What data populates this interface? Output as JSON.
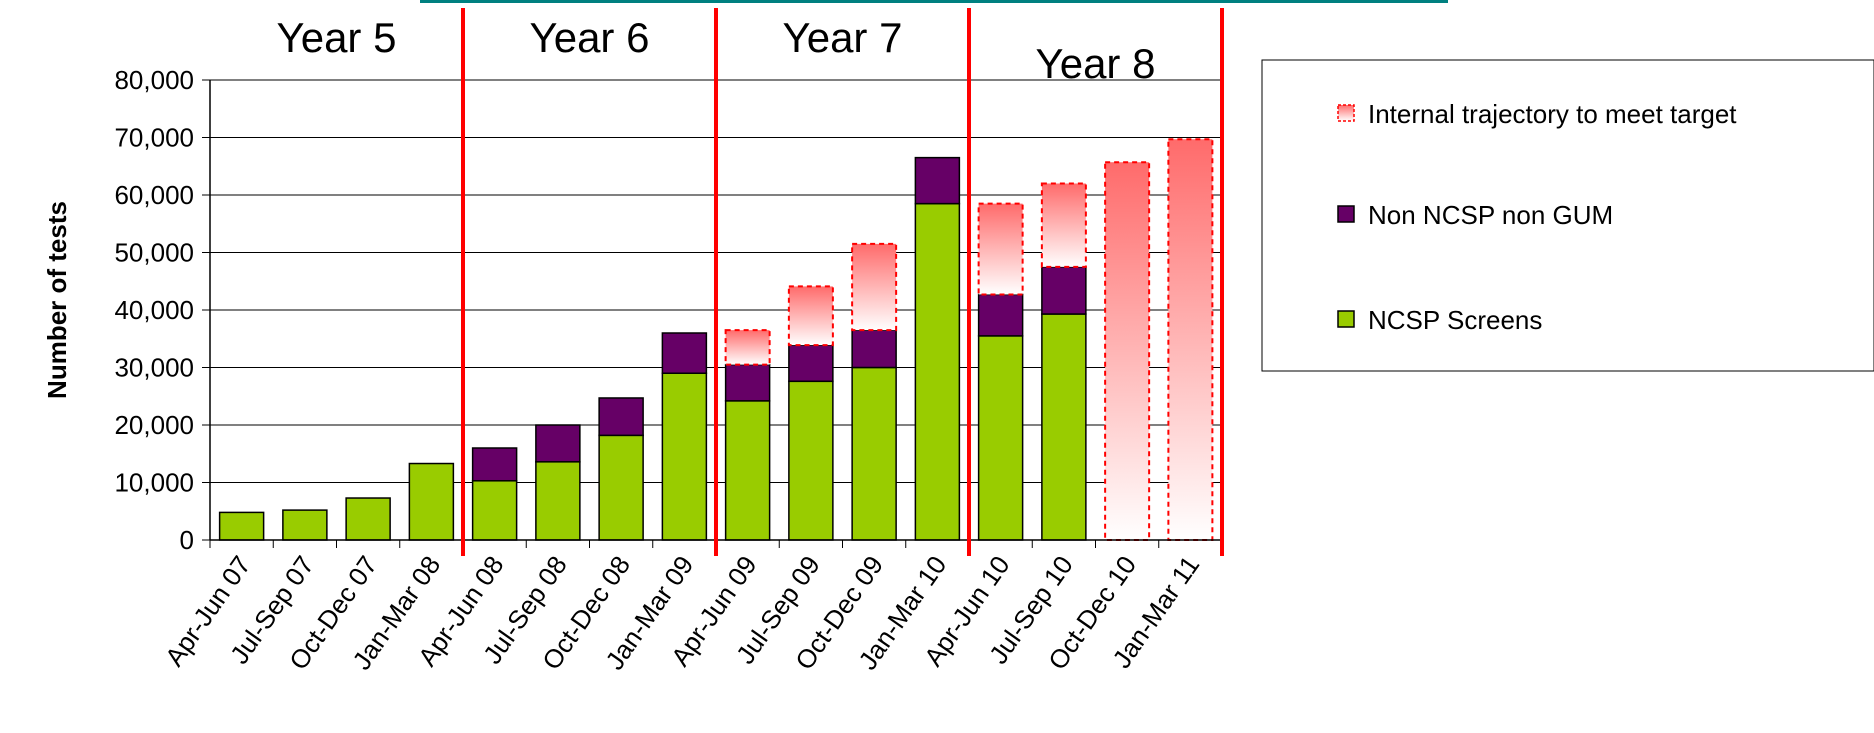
{
  "chart_data": {
    "type": "bar",
    "stacked": true,
    "ylabel": "Number of tests",
    "xlabel": "",
    "ylim": [
      0,
      80000
    ],
    "yticks": [
      "0",
      "10,000",
      "20,000",
      "30,000",
      "40,000",
      "50,000",
      "60,000",
      "70,000",
      "80,000"
    ],
    "categories": [
      "Apr-Jun 07",
      "Jul-Sep 07",
      "Oct-Dec 07",
      "Jan-Mar 08",
      "Apr-Jun 08",
      "Jul-Sep 08",
      "Oct-Dec 08",
      "Jan-Mar 09",
      "Apr-Jun 09",
      "Jul-Sep 09",
      "Oct-Dec 09",
      "Jan-Mar 10",
      "Apr-Jun 10",
      "Jul-Sep 10",
      "Oct-Dec 10",
      "Jan-Mar 11"
    ],
    "series": [
      {
        "name": "NCSP Screens",
        "color": "#99cc00",
        "values": [
          4800,
          5200,
          7300,
          13300,
          10300,
          13600,
          18200,
          29000,
          24200,
          27600,
          30000,
          58500,
          35500,
          39300,
          0,
          0
        ]
      },
      {
        "name": "Non NCSP non GUM",
        "color": "#660066",
        "values": [
          0,
          0,
          0,
          0,
          5700,
          6400,
          6500,
          7000,
          6300,
          6300,
          6500,
          8000,
          7200,
          8200,
          0,
          0
        ]
      },
      {
        "name": "Internal trajectory to meet target",
        "color": "#ff6666",
        "values": [
          0,
          0,
          0,
          0,
          0,
          0,
          0,
          0,
          6000,
          10200,
          15000,
          0,
          15800,
          14500,
          65700,
          69700
        ]
      }
    ],
    "year_labels": [
      {
        "label": "Year 5",
        "start": 0,
        "end": 3
      },
      {
        "label": "Year 6",
        "start": 4,
        "end": 7
      },
      {
        "label": "Year 7",
        "start": 8,
        "end": 11
      },
      {
        "label": "Year 8",
        "start": 12,
        "end": 15
      }
    ],
    "divider_color": "#ff0000",
    "legend": {
      "placement": "right",
      "items": [
        "Internal trajectory to meet target",
        "Non NCSP non GUM",
        "NCSP Screens"
      ]
    },
    "grid": true
  }
}
